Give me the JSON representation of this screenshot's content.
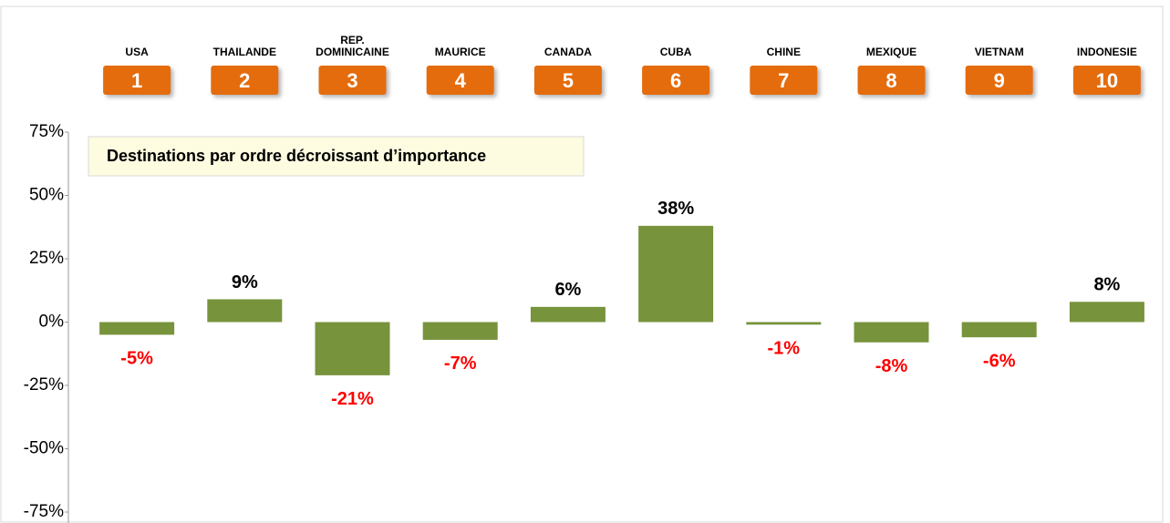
{
  "chart_data": {
    "type": "bar",
    "annotation": "Destinations par ordre décroissant d’importance",
    "categories": [
      "USA",
      "THAILANDE",
      "REP.\nDOMINICAINE",
      "MAURICE",
      "CANADA",
      "CUBA",
      "CHINE",
      "MEXIQUE",
      "VIETNAM",
      "INDONESIE"
    ],
    "ranks": [
      1,
      2,
      3,
      4,
      5,
      6,
      7,
      8,
      9,
      10
    ],
    "values": [
      -5,
      9,
      -21,
      -7,
      6,
      38,
      -1,
      -8,
      -6,
      8
    ],
    "value_labels": [
      "-5%",
      "9%",
      "-21%",
      "-7%",
      "6%",
      "38%",
      "-1%",
      "-8%",
      "-6%",
      "8%"
    ],
    "color": "#77933c",
    "ylim": [
      -75,
      75
    ],
    "yticks": [
      {
        "value": -75,
        "label": "-75%"
      },
      {
        "value": -50,
        "label": "-50%"
      },
      {
        "value": -25,
        "label": "-25%"
      },
      {
        "value": 0,
        "label": "0%"
      },
      {
        "value": 25,
        "label": "25%"
      },
      {
        "value": 50,
        "label": "50%"
      },
      {
        "value": 75,
        "label": "75%"
      }
    ],
    "grid": false
  }
}
